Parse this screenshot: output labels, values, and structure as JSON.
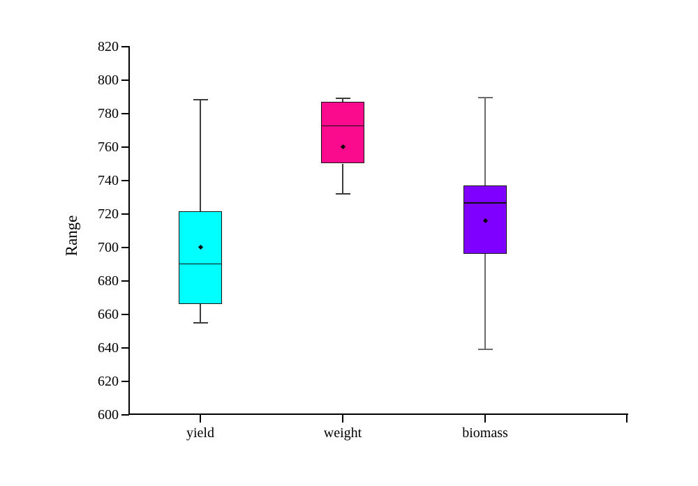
{
  "chart_data": {
    "type": "box",
    "title": "",
    "xlabel": "",
    "ylabel": "Range",
    "ylim": [
      600,
      820
    ],
    "yticks": [
      600,
      620,
      640,
      660,
      680,
      700,
      720,
      740,
      760,
      780,
      800,
      820
    ],
    "categories": [
      "yield",
      "weight",
      "biomass"
    ],
    "grid": false,
    "legend_position": "none",
    "series": [
      {
        "name": "yield",
        "whisker_low": 655,
        "q1": 666,
        "median": 690,
        "mean": 700,
        "q3": 721.5,
        "whisker_high": 788,
        "fill": "#00FFFF",
        "line_color": "#111111",
        "whisker_color": "#3c3c3c"
      },
      {
        "name": "weight",
        "whisker_low": 732,
        "q1": 750,
        "median": 772.5,
        "mean": 760,
        "q3": 787,
        "whisker_high": 789,
        "fill": "#FA0A8C",
        "line_color": "#111111",
        "whisker_color": "#3c3c3c"
      },
      {
        "name": "biomass",
        "whisker_low": 639,
        "q1": 696,
        "median": 726.5,
        "mean": 716,
        "q3": 737,
        "whisker_high": 789.5,
        "fill": "#7F00FF",
        "line_color": "#111111",
        "whisker_color": "#6b6b6b"
      }
    ]
  }
}
